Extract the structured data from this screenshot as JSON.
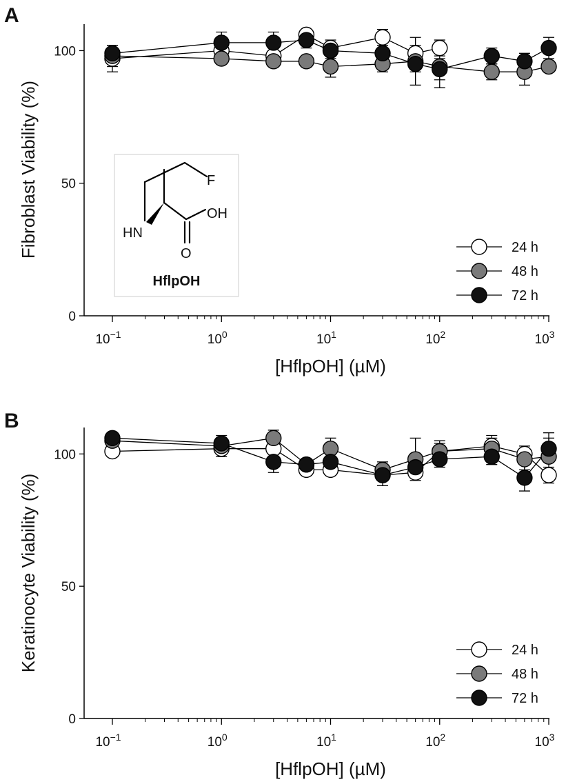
{
  "chart_data": [
    {
      "type": "scatter",
      "panel": "A",
      "xlabel": "[HflpOH] (µM)",
      "ylabel": "Fibroblast Viability (%)",
      "xscale": "log",
      "xlim": [
        0.1,
        1000
      ],
      "ylim": [
        0,
        110
      ],
      "yticks": [
        0,
        50,
        100
      ],
      "xtick_labels": [
        {
          "base": "10",
          "exp": "−1"
        },
        {
          "base": "10",
          "exp": "0"
        },
        {
          "base": "10",
          "exp": "1"
        },
        {
          "base": "10",
          "exp": "2"
        },
        {
          "base": "10",
          "exp": "3"
        }
      ],
      "legend": "bottom-right",
      "series": [
        {
          "name": "24 h",
          "color": "#ffffff",
          "x": [
            0.1,
            1,
            3,
            6,
            10,
            30,
            60,
            100
          ],
          "y": [
            97,
            100,
            98,
            106,
            101,
            105,
            99,
            101
          ],
          "err": [
            5,
            2,
            3,
            2,
            3,
            3,
            3,
            3
          ]
        },
        {
          "name": "48 h",
          "color": "#7a7a7a",
          "x": [
            0.1,
            1,
            3,
            6,
            10,
            30,
            60,
            100,
            300,
            600,
            1000
          ],
          "y": [
            98,
            97,
            96,
            96,
            94,
            95,
            96,
            94,
            92,
            92,
            94
          ],
          "err": [
            4,
            2,
            2,
            2,
            4,
            3,
            9,
            8,
            3,
            5,
            2
          ]
        },
        {
          "name": "72 h",
          "color": "#111111",
          "x": [
            0.1,
            1,
            3,
            6,
            10,
            30,
            60,
            100,
            300,
            600,
            1000
          ],
          "y": [
            99,
            103,
            103,
            104,
            100,
            99,
            95,
            93,
            98,
            96,
            101
          ],
          "err": [
            3,
            4,
            4,
            3,
            3,
            3,
            3,
            4,
            3,
            3,
            4
          ]
        }
      ]
    },
    {
      "type": "scatter",
      "panel": "B",
      "xlabel": "[HflpOH] (µM)",
      "ylabel": "Keratinocyte Viability (%)",
      "xscale": "log",
      "xlim": [
        0.1,
        1000
      ],
      "ylim": [
        0,
        110
      ],
      "yticks": [
        0,
        50,
        100
      ],
      "xtick_labels": [
        {
          "base": "10",
          "exp": "−1"
        },
        {
          "base": "10",
          "exp": "0"
        },
        {
          "base": "10",
          "exp": "1"
        },
        {
          "base": "10",
          "exp": "2"
        },
        {
          "base": "10",
          "exp": "3"
        }
      ],
      "legend": "bottom-right",
      "series": [
        {
          "name": "24 h",
          "color": "#ffffff",
          "x": [
            0.1,
            1,
            3,
            6,
            10,
            30,
            60,
            100,
            300,
            600,
            1000
          ],
          "y": [
            101,
            102,
            102,
            94,
            94,
            92,
            93,
            101,
            103,
            100,
            92
          ],
          "err": [
            2,
            3,
            3,
            2,
            2,
            2,
            2,
            3,
            4,
            3,
            3
          ]
        },
        {
          "name": "48 h",
          "color": "#7a7a7a",
          "x": [
            0.1,
            1,
            3,
            6,
            10,
            30,
            60,
            100,
            300,
            600,
            1000
          ],
          "y": [
            105,
            103,
            106,
            96,
            102,
            94,
            98,
            101,
            102,
            98,
            99
          ],
          "err": [
            2,
            3,
            3,
            2,
            4,
            3,
            8,
            4,
            4,
            4,
            9
          ]
        },
        {
          "name": "72 h",
          "color": "#111111",
          "x": [
            0.1,
            1,
            3,
            6,
            10,
            30,
            60,
            100,
            300,
            600,
            1000
          ],
          "y": [
            106,
            104,
            97,
            96,
            97,
            92,
            95,
            98,
            99,
            91,
            102
          ],
          "err": [
            2,
            3,
            4,
            2,
            3,
            4,
            3,
            3,
            3,
            5,
            4
          ]
        }
      ]
    }
  ],
  "panel_labels": [
    "A",
    "B"
  ],
  "structure": {
    "name": "HflpOH",
    "atoms": {
      "fluorine": "F",
      "amine": "HN",
      "hydroxyl": "OH",
      "carbonyl_oxygen": "O"
    }
  }
}
